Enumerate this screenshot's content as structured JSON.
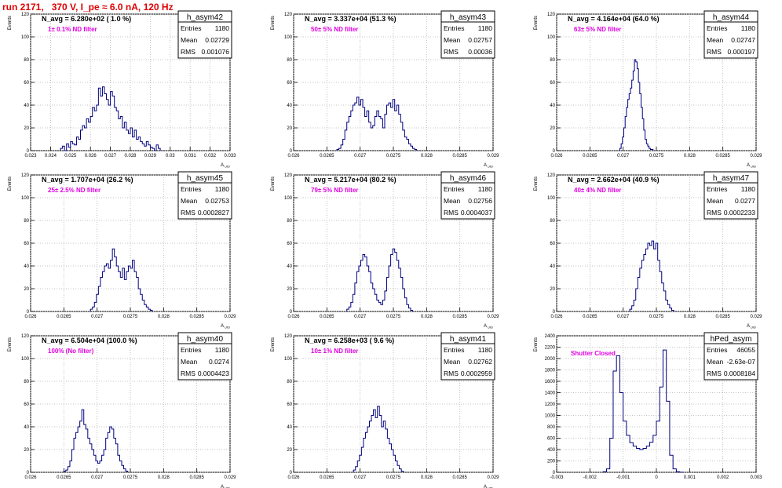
{
  "page_title": "run 2171,   370 V, I_pe ≈ 6.0 nA, 120 Hz",
  "stats_labels": {
    "entries": "Entries",
    "mean": "Mean",
    "rms": "RMS"
  },
  "colors": {
    "histogram": "#00007f",
    "filter_label": "#e000e0",
    "title": "#e00000",
    "grid": "#b0b0b0"
  },
  "chart_data": [
    {
      "type": "bar",
      "histogram": "h_asym42",
      "navg": "N_avg = 6.280e+02 ( 1.0 %)",
      "filter_label": "1± 0.1% ND filter",
      "stats": {
        "entries": "1180",
        "mean": "0.02729",
        "rms": "0.001076"
      },
      "ylabel": "Events",
      "xlabel": "A_UID",
      "xlim": [
        0.023,
        0.033
      ],
      "ylim": [
        0,
        120
      ],
      "xticks": [
        0.023,
        0.024,
        0.025,
        0.026,
        0.027,
        0.028,
        0.029,
        0.03,
        0.031,
        0.032,
        0.033
      ],
      "xtick_labels": [
        "0.023",
        "0.024",
        "0.025",
        "0.026",
        "0.027",
        "0.028",
        "0.029",
        "0.03",
        "0.031",
        "0.032",
        "0.033"
      ],
      "yticks": [
        0,
        20,
        40,
        60,
        80,
        100,
        120
      ],
      "bin_start": 0.0245,
      "bin_width": 0.0001,
      "values": [
        2,
        4,
        0,
        6,
        3,
        8,
        6,
        5,
        12,
        10,
        18,
        22,
        20,
        28,
        25,
        30,
        38,
        35,
        40,
        55,
        48,
        56,
        50,
        45,
        40,
        52,
        48,
        38,
        35,
        28,
        30,
        20,
        25,
        18,
        15,
        20,
        12,
        18,
        10,
        12,
        8,
        6,
        4,
        8,
        5,
        3,
        2,
        0,
        5,
        2
      ]
    },
    {
      "type": "bar",
      "histogram": "h_asym43",
      "navg": "N_avg = 3.337e+04 (51.3 %)",
      "filter_label": "50± 5% ND filter",
      "stats": {
        "entries": "1180",
        "mean": "0.02757",
        "rms": "0.00036"
      },
      "ylabel": "Events",
      "xlabel": "A_UID",
      "xlim": [
        0.026,
        0.029
      ],
      "ylim": [
        0,
        120
      ],
      "xticks": [
        0.026,
        0.0265,
        0.027,
        0.0275,
        0.028,
        0.0285,
        0.029
      ],
      "xtick_labels": [
        "0.026",
        "0.0265",
        "0.027",
        "0.0275",
        "0.028",
        "0.0285",
        "0.029"
      ],
      "yticks": [
        0,
        20,
        40,
        60,
        80,
        100,
        120
      ],
      "bin_start": 0.02665,
      "bin_width": 3e-05,
      "values": [
        1,
        2,
        5,
        10,
        18,
        25,
        30,
        35,
        40,
        42,
        47,
        40,
        45,
        38,
        30,
        35,
        25,
        20,
        22,
        30,
        35,
        30,
        28,
        20,
        32,
        40,
        42,
        38,
        45,
        35,
        40,
        32,
        25,
        18,
        12,
        10,
        6,
        4,
        2,
        1
      ]
    },
    {
      "type": "bar",
      "histogram": "h_asym44",
      "navg": "N_avg = 4.164e+04 (64.0 %)",
      "filter_label": "63± 5% ND filter",
      "stats": {
        "entries": "1180",
        "mean": "0.02747",
        "rms": "0.000197"
      },
      "ylabel": "Events",
      "xlabel": "A_UID",
      "xlim": [
        0.026,
        0.029
      ],
      "ylim": [
        0,
        120
      ],
      "xticks": [
        0.026,
        0.0265,
        0.027,
        0.0275,
        0.028,
        0.0285,
        0.029
      ],
      "xtick_labels": [
        "0.026",
        "0.0265",
        "0.027",
        "0.0275",
        "0.028",
        "0.0285",
        "0.029"
      ],
      "yticks": [
        0,
        20,
        40,
        60,
        80,
        100,
        120
      ],
      "bin_start": 0.02695,
      "bin_width": 2e-05,
      "values": [
        2,
        6,
        12,
        20,
        30,
        38,
        45,
        50,
        55,
        62,
        70,
        80,
        78,
        72,
        60,
        50,
        38,
        28,
        18,
        10,
        6,
        4,
        2,
        1,
        1
      ]
    },
    {
      "type": "bar",
      "histogram": "h_asym45",
      "navg": "N_avg = 1.707e+04 (26.2 %)",
      "filter_label": "25± 2.5% ND filter",
      "stats": {
        "entries": "1180",
        "mean": "0.02753",
        "rms": "0.0002827"
      },
      "ylabel": "Events",
      "xlabel": "A_UID",
      "xlim": [
        0.026,
        0.029
      ],
      "ylim": [
        0,
        120
      ],
      "xticks": [
        0.026,
        0.0265,
        0.027,
        0.0275,
        0.028,
        0.0285,
        0.029
      ],
      "xtick_labels": [
        "0.026",
        "0.0265",
        "0.027",
        "0.0275",
        "0.028",
        "0.0285",
        "0.029"
      ],
      "yticks": [
        0,
        20,
        40,
        60,
        80,
        100,
        120
      ],
      "bin_start": 0.0269,
      "bin_width": 3e-05,
      "values": [
        2,
        4,
        8,
        15,
        22,
        30,
        35,
        40,
        42,
        38,
        45,
        55,
        48,
        40,
        35,
        30,
        38,
        28,
        35,
        40,
        38,
        45,
        35,
        30,
        20,
        15,
        10,
        6,
        4,
        2,
        1
      ]
    },
    {
      "type": "bar",
      "histogram": "h_asym46",
      "navg": "N_avg = 5.217e+04 (80.2 %)",
      "filter_label": "79± 5% ND filter",
      "stats": {
        "entries": "1180",
        "mean": "0.02756",
        "rms": "0.0004037"
      },
      "ylabel": "Events",
      "xlabel": "A_UID",
      "xlim": [
        0.026,
        0.029
      ],
      "ylim": [
        0,
        120
      ],
      "xticks": [
        0.026,
        0.0265,
        0.027,
        0.0275,
        0.028,
        0.0285,
        0.029
      ],
      "xtick_labels": [
        "0.026",
        "0.0265",
        "0.027",
        "0.0275",
        "0.028",
        "0.0285",
        "0.029"
      ],
      "yticks": [
        0,
        20,
        40,
        60,
        80,
        100,
        120
      ],
      "bin_start": 0.0268,
      "bin_width": 3e-05,
      "values": [
        2,
        4,
        8,
        15,
        25,
        35,
        40,
        45,
        50,
        48,
        40,
        35,
        25,
        20,
        15,
        10,
        8,
        6,
        10,
        18,
        30,
        40,
        50,
        55,
        52,
        45,
        38,
        30,
        20,
        12,
        6,
        3,
        1
      ]
    },
    {
      "type": "bar",
      "histogram": "h_asym47",
      "navg": "N_avg = 2.662e+04 (40.9 %)",
      "filter_label": "40± 4% ND filter",
      "stats": {
        "entries": "1180",
        "mean": "0.0277",
        "rms": "0.0002233"
      },
      "ylabel": "Events",
      "xlabel": "A_UID",
      "xlim": [
        0.026,
        0.029
      ],
      "ylim": [
        0,
        120
      ],
      "xticks": [
        0.026,
        0.0265,
        0.027,
        0.0275,
        0.028,
        0.0285,
        0.029
      ],
      "xtick_labels": [
        "0.026",
        "0.0265",
        "0.027",
        "0.0275",
        "0.028",
        "0.0285",
        "0.029"
      ],
      "yticks": [
        0,
        20,
        40,
        60,
        80,
        100,
        120
      ],
      "bin_start": 0.0271,
      "bin_width": 3e-05,
      "values": [
        2,
        5,
        10,
        20,
        30,
        38,
        45,
        50,
        55,
        60,
        58,
        62,
        55,
        60,
        45,
        35,
        25,
        18,
        10,
        6,
        3,
        1
      ]
    },
    {
      "type": "bar",
      "histogram": "h_asym40",
      "navg": "N_avg = 6.504e+04 (100.0 %)",
      "filter_label": "100% (No filter)",
      "stats": {
        "entries": "1180",
        "mean": "0.0274",
        "rms": "0.0004423"
      },
      "ylabel": "Events",
      "xlabel": "A_UID",
      "xlim": [
        0.026,
        0.029
      ],
      "ylim": [
        0,
        120
      ],
      "xticks": [
        0.026,
        0.0265,
        0.027,
        0.0275,
        0.028,
        0.0285,
        0.029
      ],
      "xtick_labels": [
        "0.026",
        "0.0265",
        "0.027",
        "0.0275",
        "0.028",
        "0.0285",
        "0.029"
      ],
      "yticks": [
        0,
        20,
        40,
        60,
        80,
        100,
        120
      ],
      "bin_start": 0.0265,
      "bin_width": 3e-05,
      "values": [
        1,
        2,
        5,
        10,
        20,
        30,
        35,
        40,
        45,
        55,
        42,
        38,
        30,
        25,
        20,
        15,
        10,
        8,
        10,
        15,
        20,
        30,
        35,
        40,
        38,
        30,
        25,
        15,
        10,
        6,
        3,
        1
      ]
    },
    {
      "type": "bar",
      "histogram": "h_asym41",
      "navg": "N_avg = 6.258e+03 ( 9.6 %)",
      "filter_label": "10± 1% ND filter",
      "stats": {
        "entries": "1180",
        "mean": "0.02762",
        "rms": "0.0002959"
      },
      "ylabel": "Events",
      "xlabel": "A_UID",
      "xlim": [
        0.026,
        0.029
      ],
      "ylim": [
        0,
        120
      ],
      "xticks": [
        0.026,
        0.0265,
        0.027,
        0.0275,
        0.028,
        0.0285,
        0.029
      ],
      "xtick_labels": [
        "0.026",
        "0.0265",
        "0.027",
        "0.0275",
        "0.028",
        "0.0285",
        "0.029"
      ],
      "yticks": [
        0,
        20,
        40,
        60,
        80,
        100,
        120
      ],
      "bin_start": 0.0269,
      "bin_width": 3e-05,
      "values": [
        2,
        5,
        10,
        15,
        22,
        30,
        35,
        40,
        45,
        50,
        55,
        48,
        58,
        50,
        40,
        45,
        38,
        30,
        25,
        20,
        15,
        10,
        6,
        3,
        1
      ]
    },
    {
      "type": "bar",
      "histogram": "hPed_asym",
      "navg": "",
      "filter_label": "Shutter Closed",
      "stats": {
        "entries": "46055",
        "mean": "-2.63e-07",
        "rms": "0.0008184"
      },
      "ylabel": "Events",
      "xlabel": "",
      "xlim": [
        -0.003,
        0.003
      ],
      "ylim": [
        0,
        2400
      ],
      "xticks": [
        -0.003,
        -0.002,
        -0.001,
        0,
        0.001,
        0.002,
        0.003
      ],
      "xtick_labels": [
        "-0.003",
        "-0.002",
        "-0.001",
        "0",
        "0.001",
        "0.002",
        "0.003"
      ],
      "yticks": [
        0,
        200,
        400,
        600,
        800,
        1000,
        1200,
        1400,
        1600,
        1800,
        2000,
        2200,
        2400
      ],
      "bin_start": -0.0016,
      "bin_width": 0.0001,
      "values": [
        10,
        60,
        600,
        1780,
        2050,
        1400,
        900,
        650,
        520,
        460,
        420,
        400,
        420,
        460,
        530,
        650,
        900,
        1500,
        2150,
        1250,
        300,
        60,
        10,
        2
      ]
    }
  ]
}
